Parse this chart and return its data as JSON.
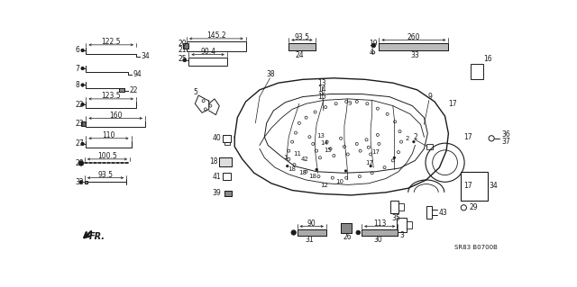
{
  "bg_color": "#ffffff",
  "line_color": "#1a1a1a",
  "watermark": "SR83 B0700B"
}
